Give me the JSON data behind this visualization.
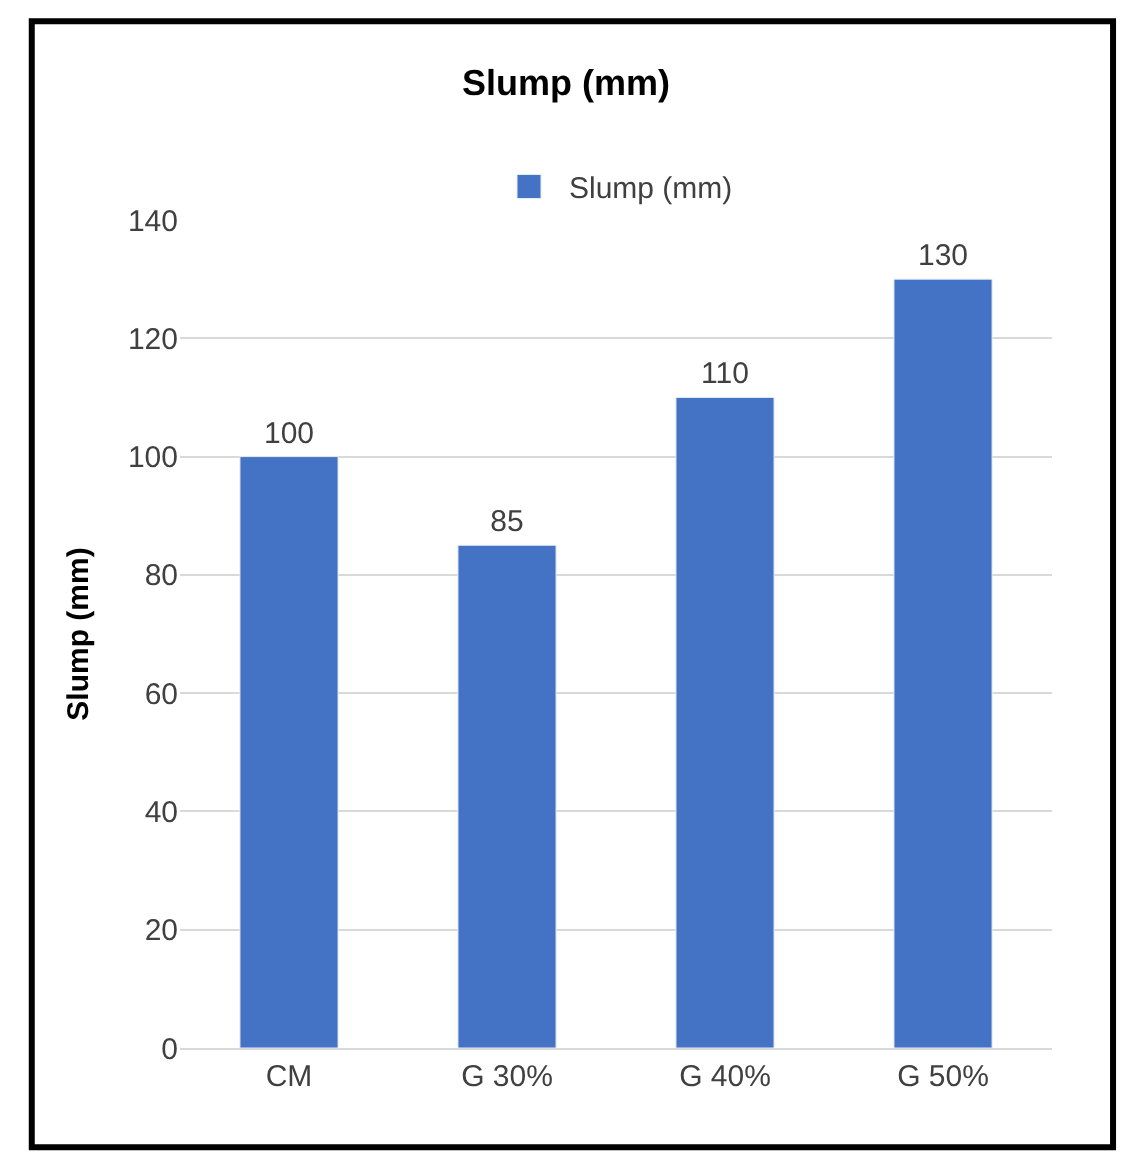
{
  "chart_data": {
    "type": "bar",
    "title": "Slump (mm)",
    "ylabel": "Slump (mm)",
    "categories": [
      "CM",
      "G 30%",
      "G 40%",
      "G 50%"
    ],
    "series": [
      {
        "name": "Slump (mm)",
        "color": "#4472c4",
        "values": [
          100,
          85,
          110,
          130
        ]
      }
    ],
    "ylim": [
      0,
      140
    ],
    "yticks": [
      0,
      20,
      40,
      60,
      80,
      100,
      120,
      140
    ],
    "grid": "y",
    "legend": "top",
    "data_labels": true
  }
}
